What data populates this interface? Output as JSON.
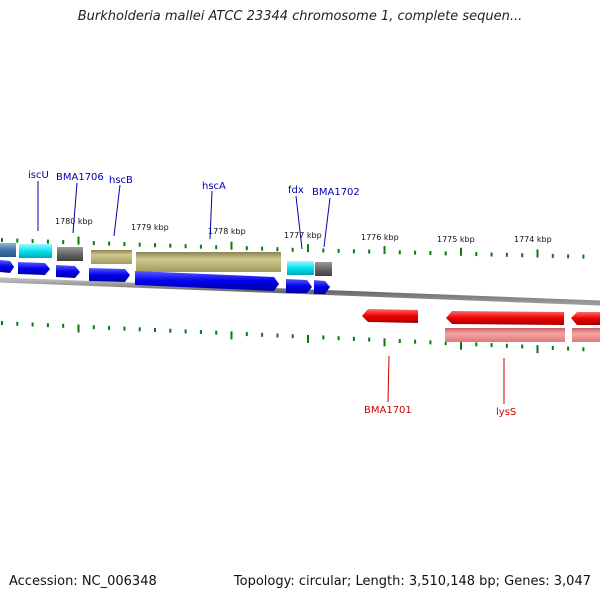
{
  "title": "Burkholderia mallei ATCC 23344 chromosome 1, complete sequen...",
  "footer": {
    "accession": "Accession: NC_006348",
    "summary": "Topology: circular; Length: 3,510,148 bp; Genes: 3,047"
  },
  "colors": {
    "forward_cds": "#0000ee",
    "reverse_cds": "#ee0000",
    "forward_label": "#0000aa",
    "reverse_label": "#cc0000",
    "cyan_gene": "#00e5f0",
    "gray_gene": "#666666",
    "khaki_gene": "#b5ad72",
    "pink_gene": "#f08a8a",
    "tick": "#0a7a0a"
  },
  "ruler_labels": [
    "1780 kbp",
    "1779 kbp",
    "1778 kbp",
    "1777 kbp",
    "1776 kbp",
    "1775 kbp",
    "1774 kbp"
  ],
  "forward_genes": [
    {
      "label": "iscU",
      "strand": "+",
      "color": "cyan"
    },
    {
      "label": "BMA1706",
      "strand": "+",
      "color": "gray"
    },
    {
      "label": "hscB",
      "strand": "+",
      "color": "khaki"
    },
    {
      "label": "hscA",
      "strand": "+",
      "color": "khaki"
    },
    {
      "label": "fdx",
      "strand": "+",
      "color": "cyan"
    },
    {
      "label": "BMA1702",
      "strand": "+",
      "color": "gray"
    }
  ],
  "reverse_genes": [
    {
      "label": "BMA1701",
      "strand": "-",
      "color": "pink"
    },
    {
      "label": "lysS",
      "strand": "-",
      "color": "pink"
    }
  ]
}
